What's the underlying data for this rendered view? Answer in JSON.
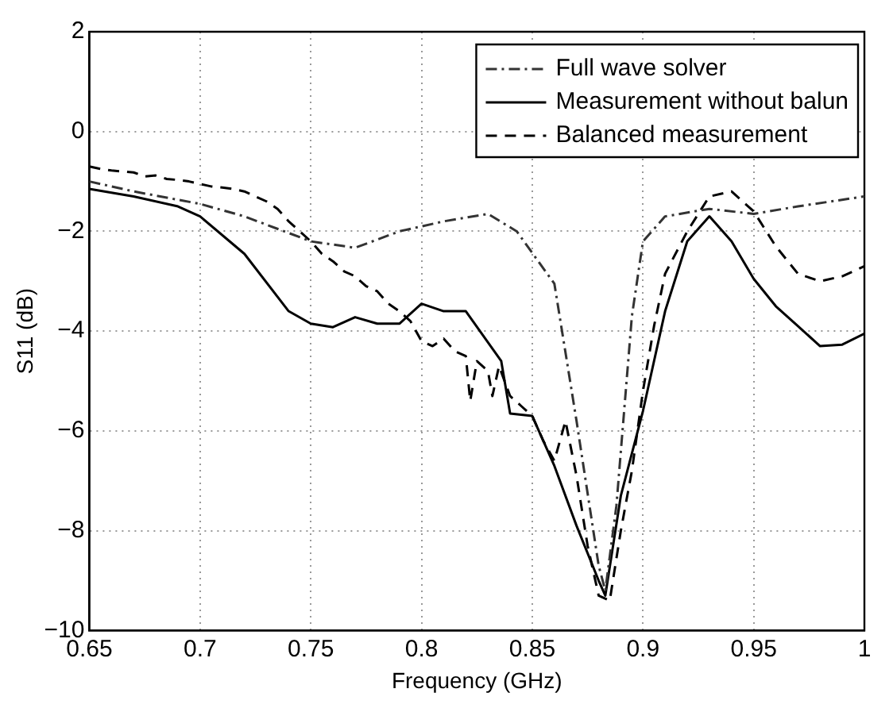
{
  "chart_data": {
    "type": "line",
    "xlabel": "Frequency (GHz)",
    "ylabel": "S11 (dB)",
    "xlim": [
      0.65,
      1
    ],
    "xticks": [
      0.65,
      0.7,
      0.75,
      0.8,
      0.85,
      0.9,
      0.95,
      1
    ],
    "ylim": [
      -10,
      2
    ],
    "yticks": [
      -10,
      -8,
      -6,
      -4,
      -2,
      0,
      2
    ],
    "grid": true,
    "legend": "top right",
    "marker": "none",
    "series": [
      {
        "name": "Full wave solver",
        "color": "#333333",
        "line_style": "dashdot",
        "x": [
          0.65,
          0.67,
          0.7,
          0.72,
          0.75,
          0.77,
          0.79,
          0.81,
          0.83,
          0.843,
          0.86,
          0.87,
          0.88,
          0.883,
          0.888,
          0.895,
          0.9,
          0.91,
          0.93,
          0.95,
          0.97,
          1
        ],
        "values": [
          -1.0,
          -1.2,
          -1.45,
          -1.7,
          -2.2,
          -2.33,
          -2.0,
          -1.8,
          -1.65,
          -2.0,
          -3.05,
          -5.8,
          -8.7,
          -9.2,
          -7.5,
          -3.7,
          -2.2,
          -1.7,
          -1.55,
          -1.65,
          -1.5,
          -1.3
        ]
      },
      {
        "name": "Measurement without balun",
        "color": "#000000",
        "line_style": "solid",
        "x": [
          0.65,
          0.67,
          0.69,
          0.7,
          0.72,
          0.74,
          0.75,
          0.76,
          0.77,
          0.78,
          0.79,
          0.8,
          0.81,
          0.82,
          0.836,
          0.84,
          0.85,
          0.86,
          0.87,
          0.88,
          0.883,
          0.89,
          0.9,
          0.91,
          0.92,
          0.93,
          0.94,
          0.95,
          0.96,
          0.97,
          0.98,
          0.99,
          1
        ],
        "values": [
          -1.15,
          -1.3,
          -1.5,
          -1.7,
          -2.45,
          -3.6,
          -3.85,
          -3.92,
          -3.72,
          -3.85,
          -3.85,
          -3.45,
          -3.6,
          -3.6,
          -4.6,
          -5.65,
          -5.7,
          -6.7,
          -7.9,
          -9.0,
          -9.3,
          -7.3,
          -5.6,
          -3.6,
          -2.2,
          -1.7,
          -2.2,
          -2.95,
          -3.5,
          -3.9,
          -4.3,
          -4.27,
          -4.05
        ]
      },
      {
        "name": "Balanced measurement",
        "color": "#000000",
        "line_style": "dashed",
        "x": [
          0.65,
          0.655,
          0.66,
          0.665,
          0.67,
          0.675,
          0.68,
          0.685,
          0.69,
          0.695,
          0.7,
          0.705,
          0.71,
          0.715,
          0.72,
          0.725,
          0.73,
          0.735,
          0.74,
          0.745,
          0.75,
          0.755,
          0.76,
          0.765,
          0.77,
          0.775,
          0.78,
          0.785,
          0.79,
          0.795,
          0.8,
          0.805,
          0.81,
          0.815,
          0.82,
          0.822,
          0.825,
          0.83,
          0.832,
          0.835,
          0.84,
          0.845,
          0.85,
          0.855,
          0.86,
          0.865,
          0.87,
          0.875,
          0.88,
          0.885,
          0.89,
          0.895,
          0.9,
          0.905,
          0.91,
          0.92,
          0.93,
          0.94,
          0.95,
          0.96,
          0.97,
          0.98,
          0.99,
          1
        ],
        "values": [
          -0.7,
          -0.75,
          -0.78,
          -0.8,
          -0.82,
          -0.9,
          -0.88,
          -0.95,
          -0.97,
          -1.0,
          -1.05,
          -1.1,
          -1.12,
          -1.15,
          -1.2,
          -1.3,
          -1.4,
          -1.55,
          -1.8,
          -2.0,
          -2.2,
          -2.45,
          -2.6,
          -2.8,
          -2.9,
          -3.1,
          -3.2,
          -3.45,
          -3.6,
          -3.8,
          -4.2,
          -4.3,
          -4.15,
          -4.4,
          -4.5,
          -5.4,
          -4.6,
          -4.8,
          -5.3,
          -4.7,
          -5.3,
          -5.5,
          -5.7,
          -6.2,
          -6.6,
          -5.8,
          -6.9,
          -8.3,
          -9.3,
          -9.4,
          -8.0,
          -6.8,
          -5.2,
          -3.9,
          -2.85,
          -2.0,
          -1.3,
          -1.2,
          -1.6,
          -2.3,
          -2.85,
          -3.0,
          -2.9,
          -2.7
        ]
      }
    ]
  }
}
